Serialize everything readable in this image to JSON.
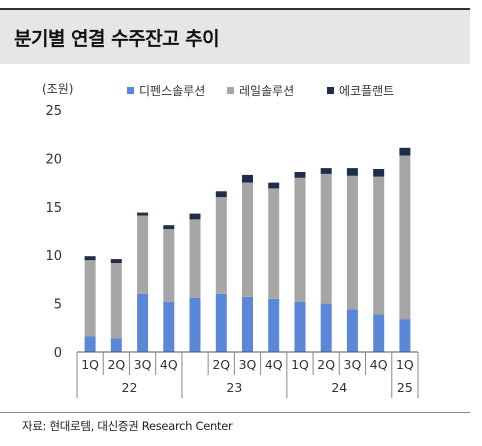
{
  "title": "분기별 연결 수주잔고 추이",
  "source": "자료: 현대로템, 대신증권 Research Center",
  "chart_data": {
    "type": "bar",
    "stacked": true,
    "unit_label": "(조원)",
    "ylim": [
      0,
      25
    ],
    "yticks": [
      0,
      5,
      10,
      15,
      20,
      25
    ],
    "grid": false,
    "legend_position": "top",
    "categories": [
      "1Q22",
      "2Q22",
      "3Q22",
      "4Q22",
      "1Q23",
      "2Q23",
      "3Q23",
      "4Q23",
      "1Q24",
      "2Q24",
      "3Q24",
      "4Q24",
      "1Q25"
    ],
    "quarter_labels": [
      "1Q",
      "2Q",
      "3Q",
      "4Q",
      "",
      "2Q",
      "3Q",
      "4Q",
      "1Q",
      "2Q",
      "3Q",
      "4Q",
      "1Q"
    ],
    "year_groups": [
      {
        "label": "22",
        "start": 0,
        "end": 3
      },
      {
        "label": "23",
        "start": 4,
        "end": 7
      },
      {
        "label": "24",
        "start": 8,
        "end": 11
      },
      {
        "label": "25",
        "start": 12,
        "end": 12
      }
    ],
    "series": [
      {
        "name": "디펜스솔루션",
        "color": "#5b87d9",
        "values": [
          1.6,
          1.4,
          6.0,
          5.2,
          5.6,
          6.0,
          5.7,
          5.5,
          5.2,
          5.0,
          4.4,
          3.9,
          3.4
        ]
      },
      {
        "name": "레일솔루션",
        "color": "#a6a6a6",
        "values": [
          7.9,
          7.8,
          8.1,
          7.5,
          8.1,
          10.0,
          11.8,
          11.4,
          12.8,
          13.4,
          13.8,
          14.2,
          16.9
        ]
      },
      {
        "name": "에코플랜트",
        "color": "#1f2d4a",
        "values": [
          0.4,
          0.4,
          0.3,
          0.4,
          0.6,
          0.6,
          0.8,
          0.6,
          0.6,
          0.6,
          0.8,
          0.8,
          0.8
        ]
      }
    ]
  }
}
